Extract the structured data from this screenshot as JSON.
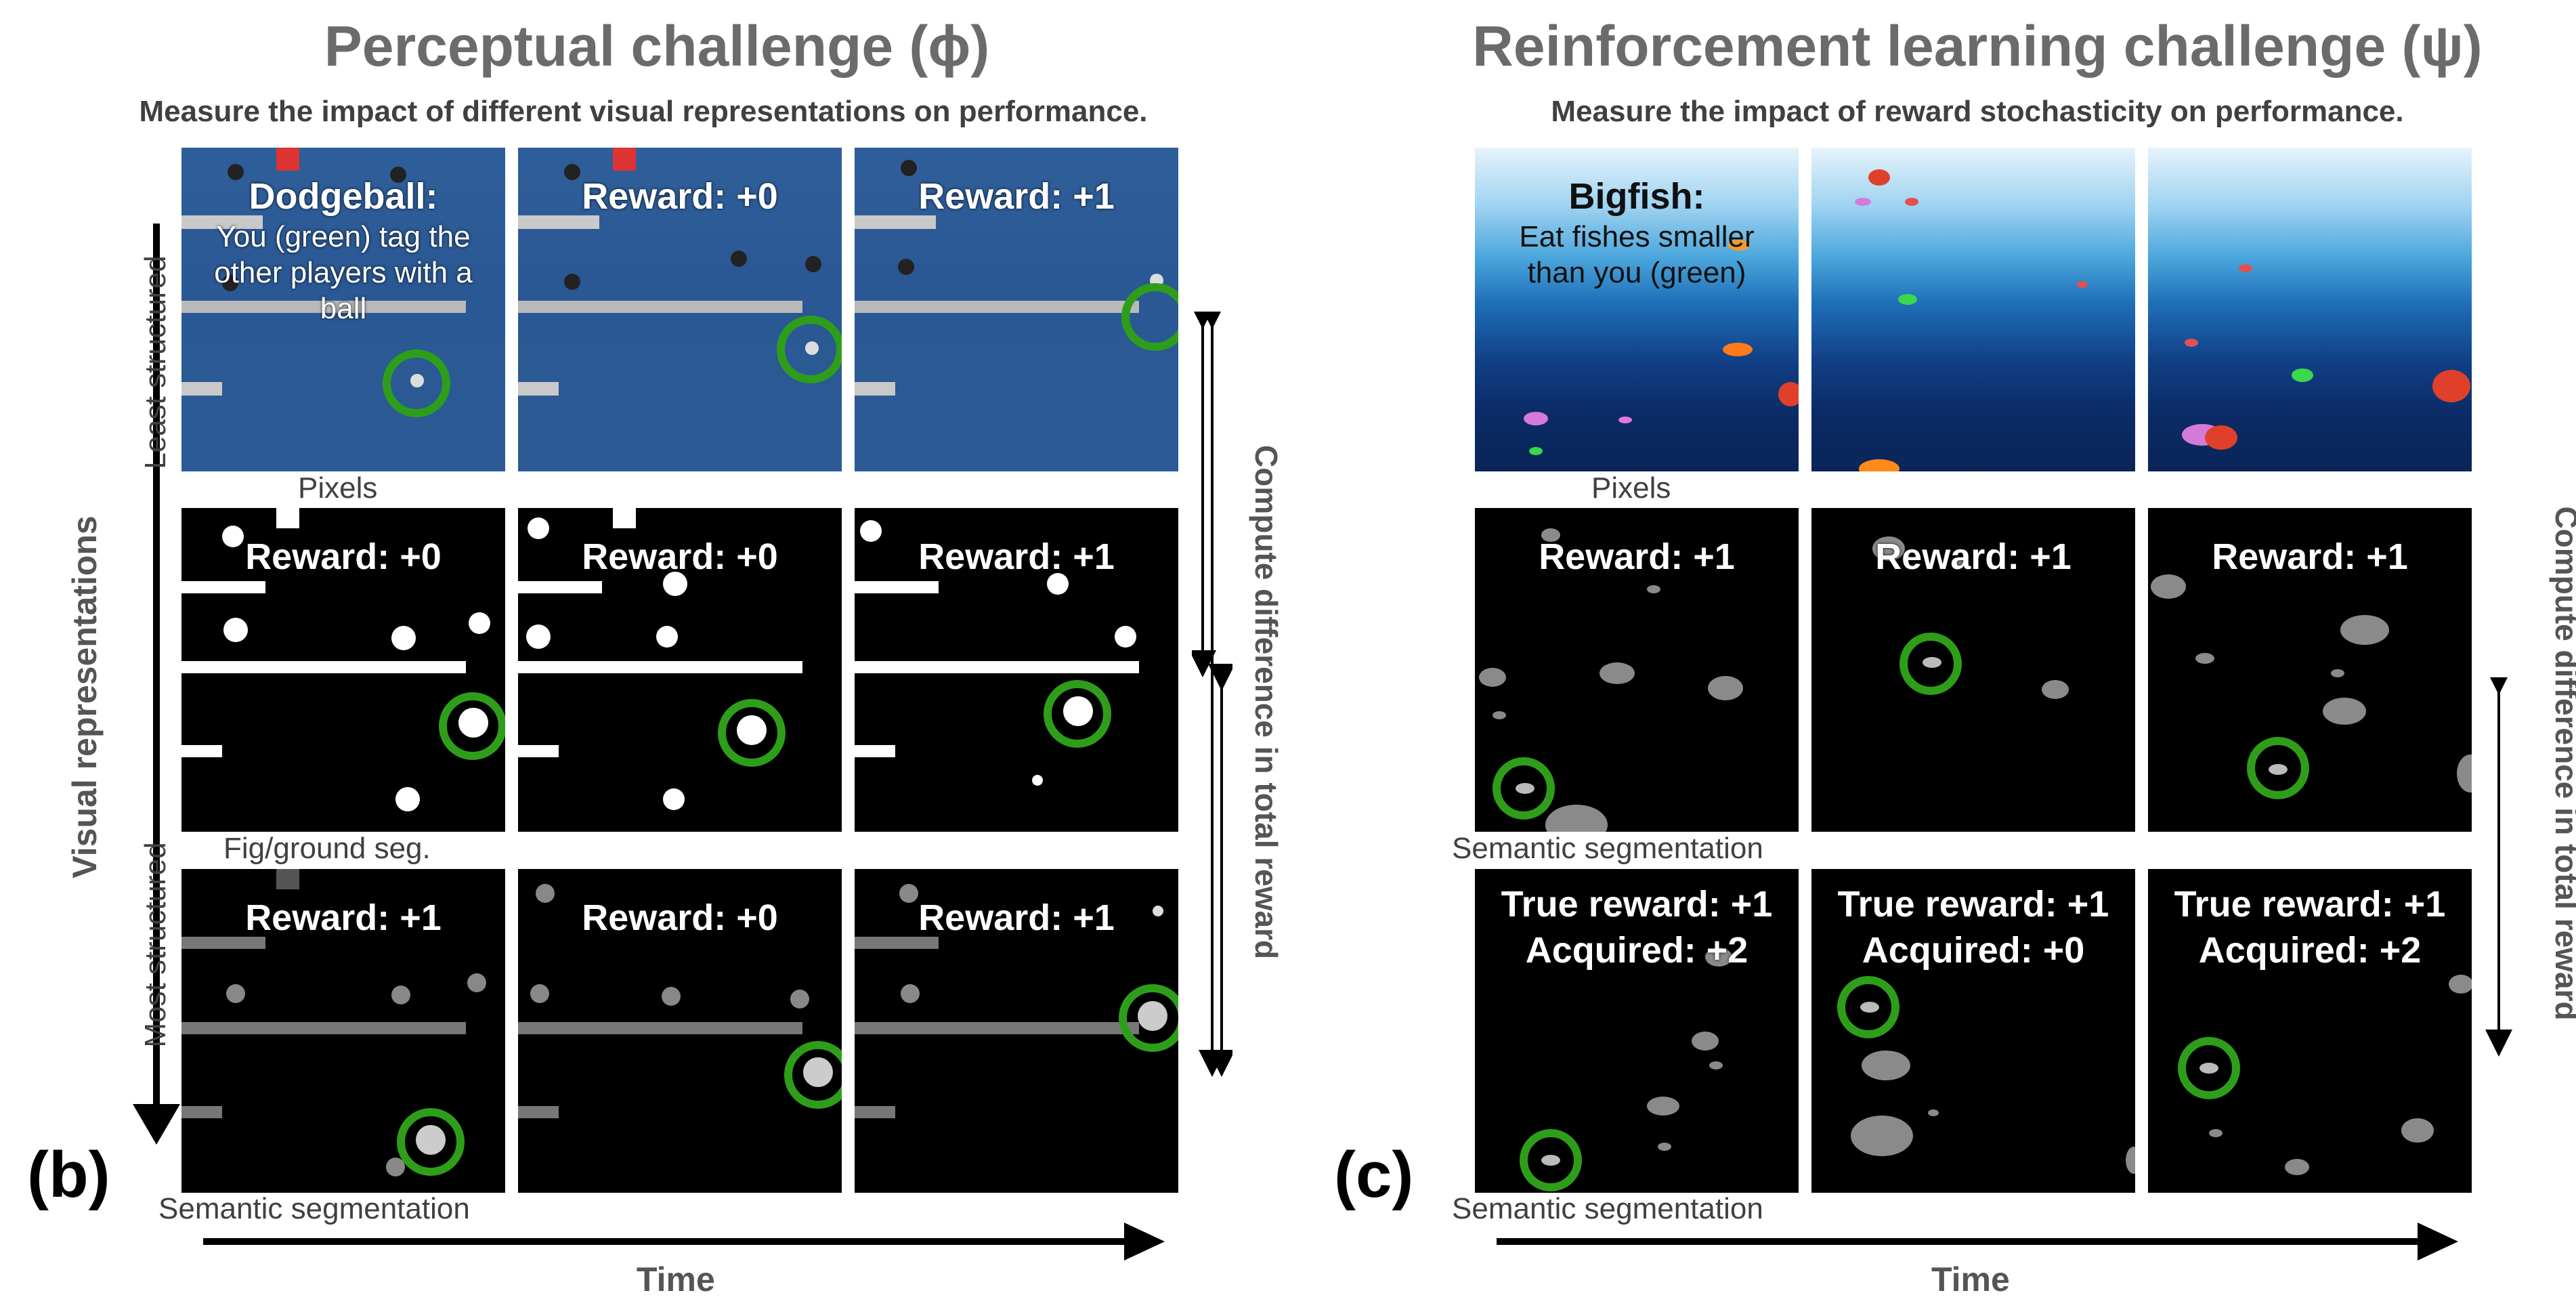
{
  "left": {
    "title": "Perceptual challenge (ϕ)",
    "subtitle": "Measure the impact of different visual representations on performance.",
    "panel_letter": "(b)",
    "y_axis_label": "Visual representations",
    "top_label": "Least structured",
    "bottom_label": "Most structured",
    "right_label": "Compute difference in total reward",
    "x_axis_label": "Time",
    "rows": [
      {
        "label": "Pixels",
        "tiles": [
          {
            "header": "Dodgeball:",
            "text": "You (green) tag the other players with a ball"
          },
          {
            "header": "Reward: +0"
          },
          {
            "header": "Reward: +1"
          }
        ]
      },
      {
        "label": "Fig/ground seg.",
        "tiles": [
          {
            "header": "Reward: +0"
          },
          {
            "header": "Reward: +0"
          },
          {
            "header": "Reward: +1"
          }
        ]
      },
      {
        "label": "Semantic segmentation",
        "tiles": [
          {
            "header": "Reward: +1"
          },
          {
            "header": "Reward: +0"
          },
          {
            "header": "Reward: +1"
          }
        ]
      }
    ]
  },
  "right": {
    "title": "Reinforcement learning challenge (ψ)",
    "subtitle": "Measure the impact of reward stochasticity on performance.",
    "panel_letter": "(c)",
    "right_label": "Compute difference in total reward",
    "x_axis_label": "Time",
    "rows": [
      {
        "label": "Pixels",
        "tiles": [
          {
            "header": "Bigfish:",
            "text": "Eat fishes smaller than you (green)"
          },
          {
            "header": ""
          },
          {
            "header": ""
          }
        ]
      },
      {
        "label": "Semantic segmentation",
        "tiles": [
          {
            "header": "Reward: +1"
          },
          {
            "header": "Reward: +1"
          },
          {
            "header": "Reward: +1"
          }
        ]
      },
      {
        "label": "Semantic segmentation",
        "tiles": [
          {
            "header": "True reward: +1",
            "text": "Acquired: +2"
          },
          {
            "header": "True reward: +1",
            "text": "Acquired: +0"
          },
          {
            "header": "True reward: +1",
            "text": "Acquired: +2"
          }
        ]
      }
    ]
  },
  "colors": {
    "highlight_ring": "#2e9e1a",
    "title_gray": "#6b6b6b",
    "water": "#2b5a95",
    "seg_gray": "#8a8a8a"
  }
}
